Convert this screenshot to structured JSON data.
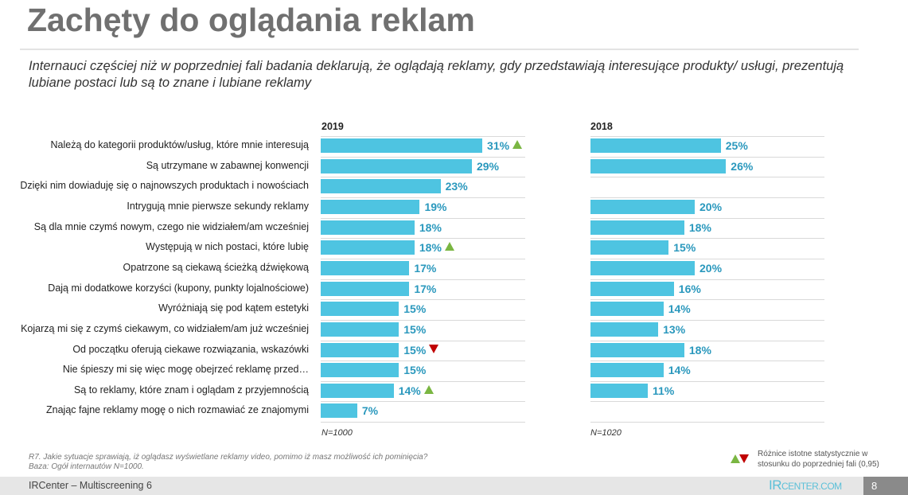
{
  "title": "Zachęty do oglądania reklam",
  "subtitle": "Internauci częściej niż w poprzedniej fali badania deklarują, że oglądają reklamy, gdy przedstawiają interesujące produkty/ usługi, prezentują lubiane postaci lub są to znane i lubiane reklamy",
  "chart_data": {
    "type": "bar",
    "orientation": "horizontal",
    "unit": "%",
    "categories": [
      "Należą do kategorii produktów/usług, które mnie interesują",
      "Są utrzymane w zabawnej konwencji",
      "Dzięki nim dowiaduję się o najnowszych produktach i nowościach",
      "Intrygują mnie pierwsze sekundy reklamy",
      "Są dla mnie czymś nowym, czego nie widziałem/am wcześniej",
      "Występują w nich postaci, które lubię",
      "Opatrzone są ciekawą ścieżką dźwiękową",
      "Dają mi dodatkowe korzyści (kupony, punkty lojalnościowe)",
      "Wyróżniają się pod kątem estetyki",
      "Kojarzą mi się z czymś ciekawym, co widziałem/am już wcześniej",
      "Od początku oferują ciekawe rozwiązania, wskazówki",
      "Nie śpieszy mi się więc mogę obejrzeć reklamę przed…",
      "Są to reklamy, które znam i oglądam z przyjemnością",
      "Znając fajne reklamy mogę o nich rozmawiać ze znajomymi"
    ],
    "series": [
      {
        "name": "2019",
        "sample": "N=1000",
        "values": [
          31,
          29,
          23,
          19,
          18,
          18,
          17,
          17,
          15,
          15,
          15,
          15,
          14,
          7
        ],
        "significance": [
          "up",
          null,
          null,
          null,
          null,
          "up",
          null,
          null,
          null,
          null,
          "down",
          null,
          "up",
          null
        ]
      },
      {
        "name": "2018",
        "sample": "N=1020",
        "values": [
          25,
          26,
          null,
          20,
          18,
          15,
          20,
          16,
          14,
          13,
          18,
          14,
          11,
          null
        ]
      }
    ],
    "bar_color": "#4ec4e1",
    "label_color": "#2a98bd",
    "up_color": "#7ab642",
    "down_color": "#c00000"
  },
  "note": {
    "question": "R7. Jakie sytuacje sprawiają, iż oglądasz wyświetlane reklamy video, pomimo iż masz możliwość ich pominięcia?",
    "base": "Baza: Ogół internautów N=1000."
  },
  "legend": {
    "text_line1": "Różnice istotne statystycznie w",
    "text_line2": "stosunku do poprzedniej fali (0,95)"
  },
  "footer": {
    "text": "IRCenter – Multiscreening 6",
    "logo": "IRCenter.com",
    "page": "8"
  }
}
